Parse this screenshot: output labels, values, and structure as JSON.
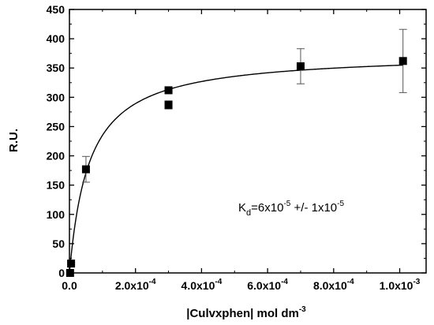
{
  "chart_data": {
    "type": "scatter",
    "title": "",
    "xlabel": "|Culvxphen| mol dm",
    "xlabel_superscript": "-3",
    "ylabel": "R.U.",
    "xlim": [
      0,
      0.00108
    ],
    "ylim": [
      0,
      450
    ],
    "x_ticks": [
      {
        "value": 0,
        "label": "0.0",
        "exp": ""
      },
      {
        "value": 0.0002,
        "label": "2.0x10",
        "exp": "-4"
      },
      {
        "value": 0.0004,
        "label": "4.0x10",
        "exp": "-4"
      },
      {
        "value": 0.0006,
        "label": "6.0x10",
        "exp": "-4"
      },
      {
        "value": 0.0008,
        "label": "8.0x10",
        "exp": "-4"
      },
      {
        "value": 0.001,
        "label": "1.0x10",
        "exp": "-3"
      }
    ],
    "y_ticks": [
      {
        "value": 0,
        "label": "0"
      },
      {
        "value": 50,
        "label": "50"
      },
      {
        "value": 100,
        "label": "100"
      },
      {
        "value": 150,
        "label": "150"
      },
      {
        "value": 200,
        "label": "200"
      },
      {
        "value": 250,
        "label": "250"
      },
      {
        "value": 300,
        "label": "300"
      },
      {
        "value": 350,
        "label": "350"
      },
      {
        "value": 400,
        "label": "400"
      },
      {
        "value": 450,
        "label": "450"
      }
    ],
    "series": [
      {
        "points": [
          {
            "x": 2e-06,
            "y": 0,
            "err": 0
          },
          {
            "x": 5e-06,
            "y": 16,
            "err": 2
          },
          {
            "x": 5e-05,
            "y": 177,
            "err": 22
          },
          {
            "x": 0.0003,
            "y": 312,
            "err": 3
          },
          {
            "x": 0.0003,
            "y": 287,
            "err": 7
          },
          {
            "x": 0.0007,
            "y": 353,
            "err": 30
          },
          {
            "x": 0.00101,
            "y": 362,
            "err": 54
          }
        ]
      }
    ],
    "fit": {
      "model": "one-site binding",
      "bmax": 376,
      "kd": 6e-05
    },
    "annotation": {
      "k": "K",
      "sub": "d",
      "eq": "=6x10",
      "sup1": "-5",
      "mid": " +/- 1x10",
      "sup2": "-5"
    },
    "grid": false,
    "legend": "none"
  }
}
